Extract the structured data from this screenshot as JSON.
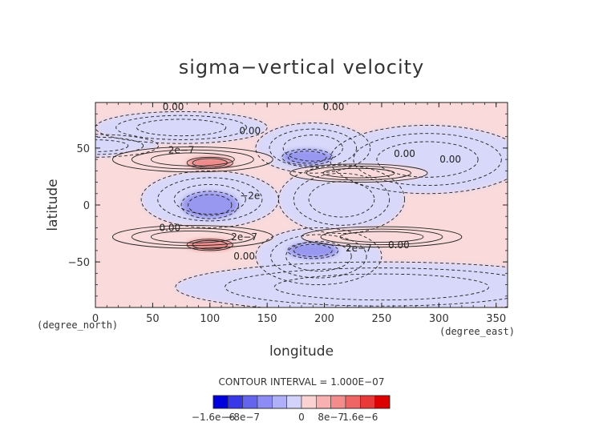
{
  "chart_data": {
    "type": "heatmap",
    "title": "sigma−vertical velocity",
    "xlabel": "longitude",
    "ylabel": "latitude",
    "x_unit": "(degree_east)",
    "y_unit": "(degree_north)",
    "xlim": [
      0,
      360
    ],
    "ylim": [
      -90,
      90
    ],
    "x_ticks": [
      {
        "value": 0,
        "label": "0"
      },
      {
        "value": 50,
        "label": "50"
      },
      {
        "value": 100,
        "label": "100"
      },
      {
        "value": 150,
        "label": "150"
      },
      {
        "value": 200,
        "label": "200"
      },
      {
        "value": 250,
        "label": "250"
      },
      {
        "value": 300,
        "label": "300"
      },
      {
        "value": 350,
        "label": "350"
      }
    ],
    "y_ticks": [
      {
        "value": 50,
        "label": "50"
      },
      {
        "value": 0,
        "label": "0"
      },
      {
        "value": -50,
        "label": "−50"
      }
    ],
    "contour_interval_text": "CONTOUR INTERVAL = 1.000E−07",
    "colorbar": {
      "colors": [
        "#0000dd",
        "#3838e8",
        "#6464ef",
        "#8c8cf4",
        "#b0b0f8",
        "#d2d2fb",
        "#fbd2d2",
        "#f8b0b0",
        "#f48c8c",
        "#ef6464",
        "#e83838",
        "#dd0000"
      ],
      "tick_labels": [
        {
          "pos": 0.0,
          "label": "−1.6e−6"
        },
        {
          "pos": 0.1667,
          "label": "−8e−7"
        },
        {
          "pos": 0.5,
          "label": "0"
        },
        {
          "pos": 0.6667,
          "label": "8e−7"
        },
        {
          "pos": 0.8333,
          "label": "1.6e−6"
        }
      ]
    },
    "field_colors": {
      "positive": "#fadada",
      "negative": "#d8d8fa",
      "strong_positive": "#ee8a8a",
      "strong_negative": "#9898f0"
    },
    "regions": [
      {
        "sign": "negative",
        "lon": 0,
        "lat": 52,
        "dlon": 55,
        "dlat": 10
      },
      {
        "sign": "negative",
        "lon": 75,
        "lat": 68,
        "dlon": 75,
        "dlat": 14
      },
      {
        "sign": "negative",
        "lon": 190,
        "lat": 50,
        "dlon": 50,
        "dlat": 22
      },
      {
        "sign": "negative",
        "lon": 290,
        "lat": 40,
        "dlon": 85,
        "dlat": 30
      },
      {
        "sign": "negative",
        "lon": 100,
        "lat": 5,
        "dlon": 60,
        "dlat": 25
      },
      {
        "sign": "negative",
        "lon": 215,
        "lat": 5,
        "dlon": 55,
        "dlat": 30
      },
      {
        "sign": "negative",
        "lon": 195,
        "lat": -45,
        "dlon": 55,
        "dlat": 25
      },
      {
        "sign": "negative",
        "lon": 250,
        "lat": -72,
        "dlon": 180,
        "dlat": 22
      },
      {
        "sign": "positive",
        "lon": 85,
        "lat": 40,
        "dlon": 70,
        "dlat": 11
      },
      {
        "sign": "positive",
        "lon": 230,
        "lat": 28,
        "dlon": 60,
        "dlat": 8
      },
      {
        "sign": "positive",
        "lon": 85,
        "lat": -28,
        "dlon": 70,
        "dlat": 10
      },
      {
        "sign": "positive",
        "lon": 250,
        "lat": -28,
        "dlon": 70,
        "dlat": 9
      },
      {
        "sign": "strong_positive",
        "lon": 100,
        "lat": 37,
        "dlon": 20,
        "dlat": 5
      },
      {
        "sign": "strong_positive",
        "lon": 100,
        "lat": -35,
        "dlon": 20,
        "dlat": 5
      },
      {
        "sign": "strong_negative",
        "lon": 100,
        "lat": 0,
        "dlon": 25,
        "dlat": 12
      },
      {
        "sign": "strong_negative",
        "lon": 185,
        "lat": 42,
        "dlon": 22,
        "dlat": 7
      },
      {
        "sign": "strong_negative",
        "lon": 190,
        "lat": -40,
        "dlon": 22,
        "dlat": 7
      }
    ],
    "contour_labels": [
      {
        "text": "0.00",
        "lon": 68,
        "lat": 86
      },
      {
        "text": "0.00",
        "lon": 208,
        "lat": 86
      },
      {
        "text": "0.00",
        "lon": 135,
        "lat": 65
      },
      {
        "text": "2e−7",
        "lon": 75,
        "lat": 48
      },
      {
        "text": "0.00",
        "lon": 270,
        "lat": 45
      },
      {
        "text": "0.00",
        "lon": 310,
        "lat": 40
      },
      {
        "text": "−2e",
        "lon": 135,
        "lat": 8
      },
      {
        "text": "0.00",
        "lon": 65,
        "lat": -20
      },
      {
        "text": "2e−7",
        "lon": 130,
        "lat": -28
      },
      {
        "text": "2e−7",
        "lon": 230,
        "lat": -38
      },
      {
        "text": "0.00",
        "lon": 265,
        "lat": -35
      },
      {
        "text": "0.00",
        "lon": 130,
        "lat": -45
      }
    ]
  }
}
